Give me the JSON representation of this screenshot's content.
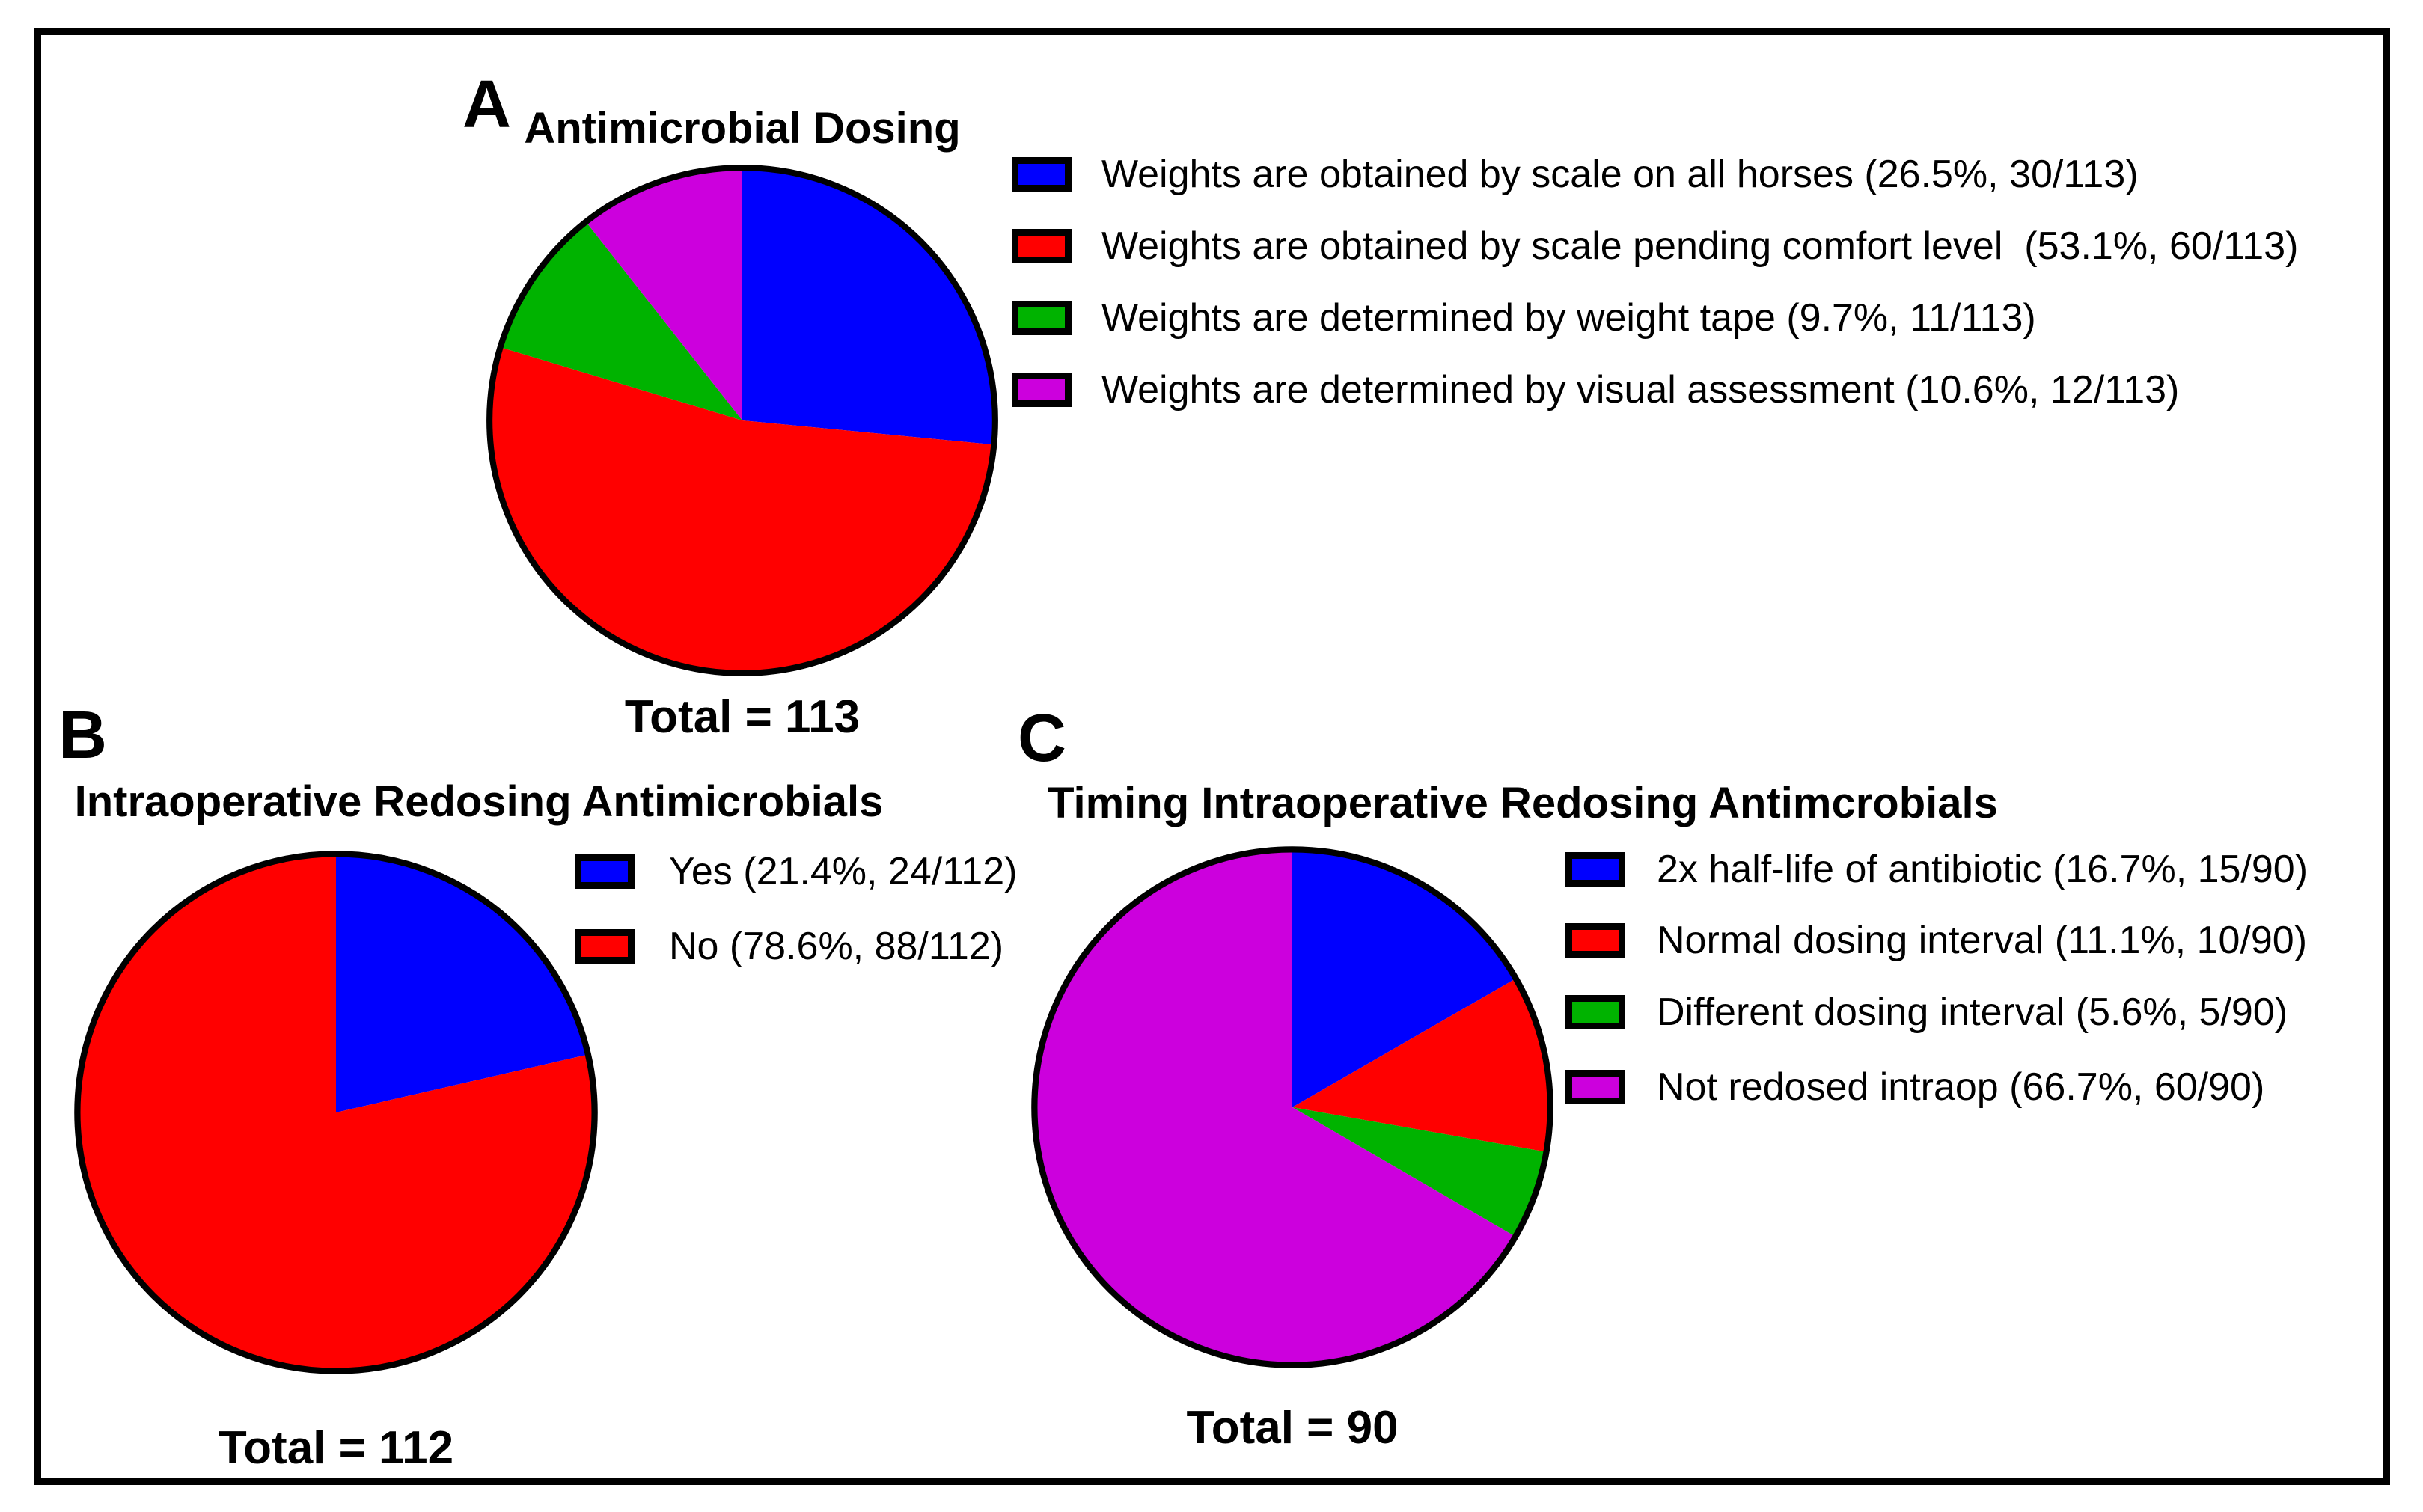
{
  "figure": {
    "background": "#FFFFFF",
    "border_color": "#000000",
    "pie_stroke_color": "#000000"
  },
  "chart_data": [
    {
      "type": "pie",
      "panel_label": "A",
      "title": "Antimicrobial Dosing",
      "total": 113,
      "total_label": "Total = 113",
      "start_angle_deg": 0,
      "direction": "clockwise",
      "legend_position": "right",
      "slices": [
        {
          "label": "Weights are obtained by scale on all horses (26.5%, 30/113)",
          "value": 30,
          "pct": 26.5,
          "color": "#0000FF"
        },
        {
          "label": "Weights are obtained by scale pending comfort level  (53.1%, 60/113)",
          "value": 60,
          "pct": 53.1,
          "color": "#FF0000"
        },
        {
          "label": "Weights are determined by weight tape (9.7%, 11/113)",
          "value": 11,
          "pct": 9.7,
          "color": "#00B300"
        },
        {
          "label": "Weights are determined by visual assessment (10.6%, 12/113)",
          "value": 12,
          "pct": 10.6,
          "color": "#CC00DD"
        }
      ]
    },
    {
      "type": "pie",
      "panel_label": "B",
      "title": "Intraoperative Redosing Antimicrobials",
      "total": 112,
      "total_label": "Total = 112",
      "start_angle_deg": 0,
      "direction": "clockwise",
      "legend_position": "right",
      "slices": [
        {
          "label": "Yes (21.4%, 24/112)",
          "value": 24,
          "pct": 21.4,
          "color": "#0000FF"
        },
        {
          "label": "No (78.6%, 88/112)",
          "value": 88,
          "pct": 78.6,
          "color": "#FF0000"
        }
      ]
    },
    {
      "type": "pie",
      "panel_label": "C",
      "title": "Timing Intraoperative Redosing Antimcrobials",
      "total": 90,
      "total_label": "Total = 90",
      "start_angle_deg": 0,
      "direction": "clockwise",
      "legend_position": "right",
      "slices": [
        {
          "label": "2x half-life of antibiotic (16.7%, 15/90)",
          "value": 15,
          "pct": 16.7,
          "color": "#0000FF"
        },
        {
          "label": "Normal dosing interval (11.1%, 10/90)",
          "value": 10,
          "pct": 11.1,
          "color": "#FF0000"
        },
        {
          "label": "Different dosing interval (5.6%, 5/90)",
          "value": 5,
          "pct": 5.6,
          "color": "#00B300"
        },
        {
          "label": "Not redosed intraop (66.7%, 60/90)",
          "value": 60,
          "pct": 66.7,
          "color": "#CC00DD"
        }
      ]
    }
  ]
}
